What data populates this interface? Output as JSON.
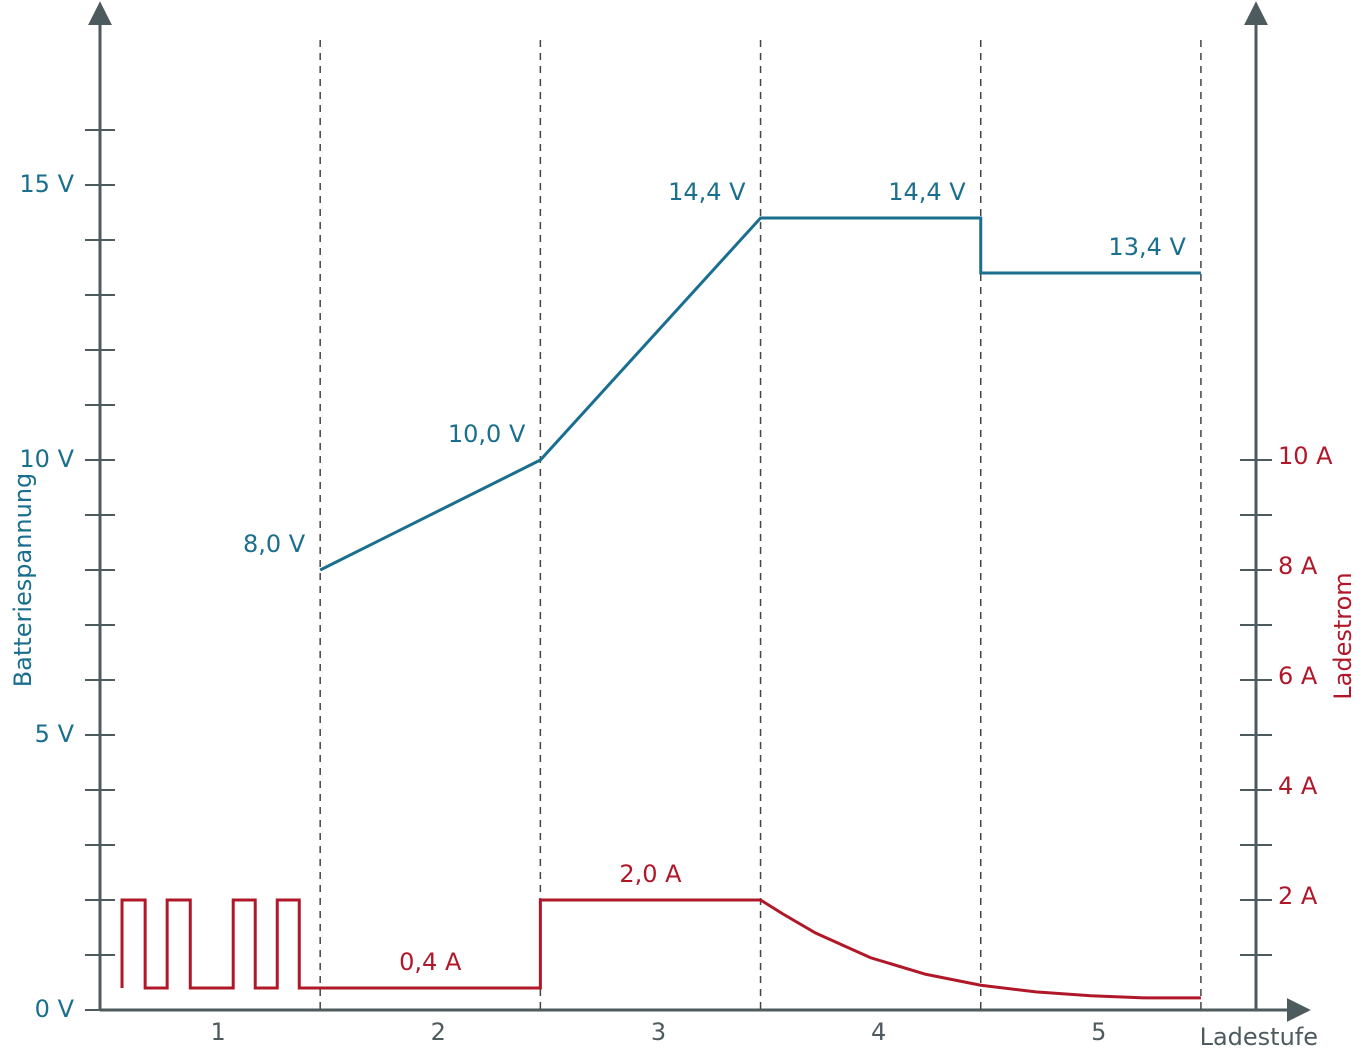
{
  "chart_data": {
    "type": "line",
    "ylabel": "Batteriespannung",
    "y2label": "Ladestrom",
    "xlabel": "Ladestufe",
    "categories": [
      "1",
      "2",
      "3",
      "4",
      "5"
    ],
    "xlim": [
      0,
      5.45
    ],
    "xticks": [
      1,
      2,
      3,
      4,
      5
    ],
    "ylim": [
      0,
      18
    ],
    "yticks": [
      {
        "value": 0,
        "label": "0 V"
      },
      {
        "value": 5,
        "label": "5 V"
      },
      {
        "value": 10,
        "label": "10 V"
      },
      {
        "value": 15,
        "label": "15 V"
      }
    ],
    "yminorticks": [
      1,
      2,
      3,
      4,
      6,
      7,
      8,
      9,
      11,
      12,
      13,
      14,
      16
    ],
    "y2lim": [
      0,
      18
    ],
    "y2ticks": [
      {
        "value": 2,
        "label": "2 A"
      },
      {
        "value": 4,
        "label": "4 A"
      },
      {
        "value": 6,
        "label": "6 A"
      },
      {
        "value": 8,
        "label": "8 A"
      },
      {
        "value": 10,
        "label": "10 A"
      }
    ],
    "y2minorticks": [
      1,
      3,
      5,
      7,
      9
    ],
    "series": [
      {
        "name": "Batteriespannung",
        "color": "#1a6e8e",
        "x": [
          1,
          2,
          3,
          4,
          4,
          5
        ],
        "values": [
          8.0,
          10.0,
          14.4,
          14.4,
          13.4,
          13.4
        ],
        "value_labels": [
          "8,0 V",
          "10,0 V",
          "14,4 V",
          "14,4  V",
          null,
          "13,4 V"
        ]
      },
      {
        "name": "Ladestrom",
        "color": "#b0182a",
        "axis": "y2",
        "x": [
          0.1,
          0.1,
          0.205,
          0.205,
          0.305,
          0.305,
          0.41,
          0.41,
          0.605,
          0.605,
          0.705,
          0.705,
          0.805,
          0.805,
          0.905,
          0.905,
          1,
          1.5,
          2,
          2,
          2.5,
          3,
          3.1,
          3.25,
          3.5,
          3.75,
          4,
          4.25,
          4.5,
          4.75,
          5
        ],
        "values": [
          0.4,
          2,
          2,
          0.4,
          0.4,
          2,
          2,
          0.4,
          0.4,
          2,
          2,
          0.4,
          0.4,
          2,
          2,
          0.4,
          0.4,
          0.4,
          0.4,
          2.0,
          2.0,
          2,
          1.75,
          1.4,
          0.95,
          0.65,
          0.45,
          0.33,
          0.26,
          0.22,
          0.22
        ],
        "value_labels": [
          null,
          null,
          null,
          null,
          null,
          null,
          null,
          null,
          null,
          null,
          null,
          null,
          null,
          null,
          null,
          null,
          null,
          "0,4 A",
          null,
          null,
          "2,0 A",
          null,
          null,
          null,
          null,
          null,
          null,
          null,
          null,
          null,
          null
        ]
      }
    ]
  }
}
